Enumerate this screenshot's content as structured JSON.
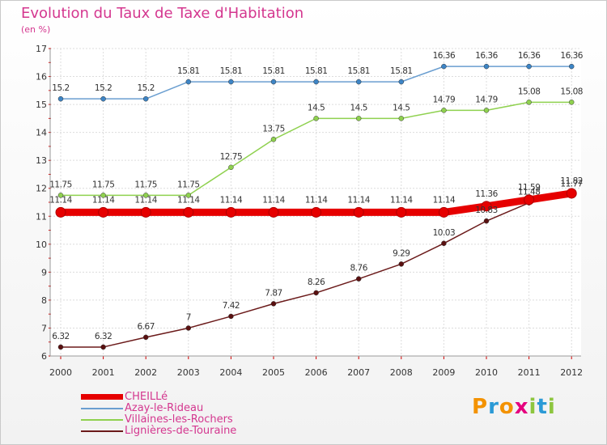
{
  "chart_data": {
    "type": "line",
    "title": "Evolution du Taux de Taxe d'Habitation",
    "subtitle": "(en %)",
    "categories": [
      "2000",
      "2001",
      "2002",
      "2003",
      "2004",
      "2005",
      "2006",
      "2007",
      "2008",
      "2009",
      "2010",
      "2011",
      "2012"
    ],
    "ylim": [
      6,
      17
    ],
    "yticks": [
      6,
      7,
      8,
      9,
      10,
      11,
      12,
      13,
      14,
      15,
      16,
      17
    ],
    "grid": true,
    "legend_position": "bottom-left",
    "series": [
      {
        "name": "CHEILLé",
        "color": "#e60000",
        "width": 9,
        "values": [
          11.14,
          11.14,
          11.14,
          11.14,
          11.14,
          11.14,
          11.14,
          11.14,
          11.14,
          11.14,
          11.36,
          11.59,
          11.82
        ],
        "labels": [
          "11.14",
          "11.14",
          "11.14",
          "11.14",
          "11.14",
          "11.14",
          "11.14",
          "11.14",
          "11.14",
          "11.14",
          "11.36",
          "11.59",
          "11.82"
        ]
      },
      {
        "name": "Azay-le-Rideau",
        "color": "#6a9ed0",
        "width": 1.5,
        "values": [
          15.2,
          15.2,
          15.2,
          15.81,
          15.81,
          15.81,
          15.81,
          15.81,
          15.81,
          16.36,
          16.36,
          16.36,
          16.36
        ],
        "labels": [
          "15.2",
          "15.2",
          "15.2",
          "15.81",
          "15.81",
          "15.81",
          "15.81",
          "15.81",
          "15.81",
          "16.36",
          "16.36",
          "16.36",
          "16.36"
        ]
      },
      {
        "name": "Villaines-les-Rochers",
        "color": "#8fd14f",
        "width": 1.5,
        "values": [
          11.75,
          11.75,
          11.75,
          11.75,
          12.75,
          13.75,
          14.5,
          14.5,
          14.5,
          14.79,
          14.79,
          15.08,
          15.08
        ],
        "labels": [
          "11.75",
          "11.75",
          "11.75",
          "11.75",
          "12.75",
          "13.75",
          "14.5",
          "14.5",
          "14.5",
          "14.79",
          "14.79",
          "15.08",
          "15.08"
        ]
      },
      {
        "name": "Lignières-de-Touraine",
        "color": "#6b1a1a",
        "width": 1.5,
        "values": [
          6.32,
          6.32,
          6.67,
          7,
          7.42,
          7.87,
          8.26,
          8.76,
          9.29,
          10.03,
          10.83,
          11.48,
          11.77
        ],
        "labels": [
          "6.32",
          "6.32",
          "6.67",
          "7",
          "7.42",
          "7.87",
          "8.26",
          "8.76",
          "9.29",
          "10.03",
          "10.83",
          "11.48",
          "11.77"
        ]
      }
    ]
  },
  "logo": {
    "letters": [
      "P",
      "r",
      "o",
      "x",
      "i",
      "t",
      "i"
    ],
    "colors": [
      "#f39200",
      "#2b9ad6",
      "#f39200",
      "#e5007e",
      "#8dc63f",
      "#2b9ad6",
      "#8dc63f"
    ]
  }
}
